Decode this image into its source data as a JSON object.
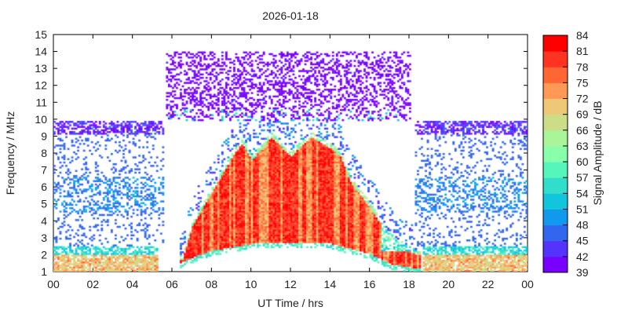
{
  "chart_data": {
    "type": "heatmap",
    "title": "2026-01-18",
    "xlabel": "UT Time / hrs",
    "ylabel": "Frequency / MHz",
    "xlim": [
      0,
      24
    ],
    "ylim": [
      1,
      15
    ],
    "xticks": [
      "00",
      "02",
      "04",
      "06",
      "08",
      "10",
      "12",
      "14",
      "16",
      "18",
      "20",
      "22",
      "00"
    ],
    "yticks": [
      "1",
      "2",
      "3",
      "4",
      "5",
      "6",
      "7",
      "8",
      "9",
      "10",
      "11",
      "12",
      "13",
      "14",
      "15"
    ],
    "colorbar": {
      "label": "Signal Amplitude / dB",
      "ticks": [
        "39",
        "42",
        "45",
        "48",
        "51",
        "54",
        "57",
        "60",
        "63",
        "66",
        "69",
        "72",
        "75",
        "78",
        "81",
        "84"
      ],
      "range": [
        39,
        84
      ],
      "colors": [
        "#7700ff",
        "#5533ff",
        "#3366ee",
        "#1199ee",
        "#11c5dd",
        "#33ddcc",
        "#55f5bb",
        "#88ffaa",
        "#aaf599",
        "#ccdd88",
        "#eec877",
        "#ff9955",
        "#ff6633",
        "#ff3322",
        "#ff0000"
      ]
    },
    "main_layer_upper_frequency_mhz": {
      "time_hrs": [
        6.5,
        7,
        8,
        9,
        9.5,
        10,
        10.5,
        11,
        12,
        12.5,
        13,
        14,
        14.5,
        15,
        16,
        17,
        18,
        19
      ],
      "freq_mhz": [
        2.0,
        4.0,
        6.0,
        8.0,
        8.8,
        7.8,
        8.5,
        9.2,
        8.0,
        8.7,
        9.2,
        8.5,
        8.0,
        6.5,
        5.0,
        3.2,
        2.4,
        2.0
      ]
    },
    "main_layer_lower_frequency_mhz": {
      "time_hrs": [
        6,
        7,
        8,
        10,
        12,
        14,
        16,
        17,
        18
      ],
      "freq_mhz": [
        1.3,
        1.8,
        2.2,
        2.6,
        2.7,
        2.6,
        2.0,
        1.4,
        1.2
      ]
    }
  }
}
